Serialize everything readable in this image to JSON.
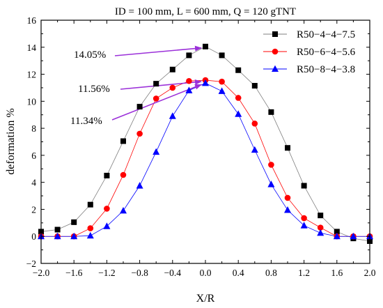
{
  "chart_data": {
    "type": "line",
    "title": "ID = 100 mm, L = 600 mm, Q = 120 gTNT",
    "xlabel": "X/R",
    "ylabel": "deformation %",
    "xlim": [
      -2.0,
      2.0
    ],
    "ylim": [
      -2,
      16
    ],
    "xticks": [
      -2.0,
      -1.6,
      -1.2,
      -0.8,
      -0.4,
      0.0,
      0.4,
      0.8,
      1.2,
      1.6,
      2.0
    ],
    "xtick_labels": [
      "−2.0",
      "−1.6",
      "−1.2",
      "−0.8",
      "−0.4",
      "0.0",
      "0.4",
      "0.8",
      "1.2",
      "1.6",
      "2.0"
    ],
    "yticks": [
      -2,
      0,
      2,
      4,
      6,
      8,
      10,
      12,
      14,
      16
    ],
    "ytick_labels": [
      "−2",
      "0",
      "2",
      "4",
      "6",
      "8",
      "10",
      "12",
      "14",
      "16"
    ],
    "grid": false,
    "legend_position": "top-right",
    "x": [
      -2.0,
      -1.8,
      -1.6,
      -1.4,
      -1.2,
      -1.0,
      -0.8,
      -0.6,
      -0.4,
      -0.2,
      0.0,
      0.2,
      0.4,
      0.6,
      0.8,
      1.0,
      1.2,
      1.4,
      1.6,
      1.8,
      2.0
    ],
    "series": [
      {
        "name": "R50−4−4−7.5",
        "color": "#000000",
        "line_color": "#7f7f7f",
        "marker": "square",
        "values": [
          0.35,
          0.5,
          1.05,
          2.35,
          4.5,
          7.05,
          9.6,
          11.3,
          12.35,
          13.4,
          14.05,
          13.4,
          12.3,
          11.15,
          9.2,
          6.55,
          3.75,
          1.55,
          0.35,
          -0.15,
          -0.35
        ]
      },
      {
        "name": "R50−6−4−5.6",
        "color": "#ff0000",
        "line_color": "#ff0000",
        "marker": "circle",
        "values": [
          0.0,
          0.0,
          0.0,
          0.6,
          2.05,
          4.55,
          7.6,
          10.2,
          11.0,
          11.5,
          11.56,
          11.45,
          10.25,
          8.35,
          5.3,
          2.85,
          1.35,
          0.65,
          0.0,
          0.0,
          0.0
        ]
      },
      {
        "name": "R50−8−4−3.8",
        "color": "#0000ff",
        "line_color": "#0000ff",
        "marker": "triangle",
        "values": [
          0.0,
          0.0,
          0.0,
          0.05,
          0.75,
          1.9,
          3.75,
          6.25,
          8.9,
          10.8,
          11.34,
          10.75,
          9.05,
          6.4,
          3.85,
          1.95,
          0.8,
          0.25,
          0.0,
          0.0,
          0.0
        ]
      }
    ],
    "annotations": [
      {
        "text": "14.05%",
        "target_x": 0.0,
        "target_y": 14.05,
        "arrow_color": "#9b30d9"
      },
      {
        "text": "11.56%",
        "target_x": 0.0,
        "target_y": 11.56,
        "arrow_color": "#9b30d9"
      },
      {
        "text": "11.34%",
        "target_x": 0.0,
        "target_y": 11.34,
        "arrow_color": "#9b30d9"
      }
    ]
  }
}
